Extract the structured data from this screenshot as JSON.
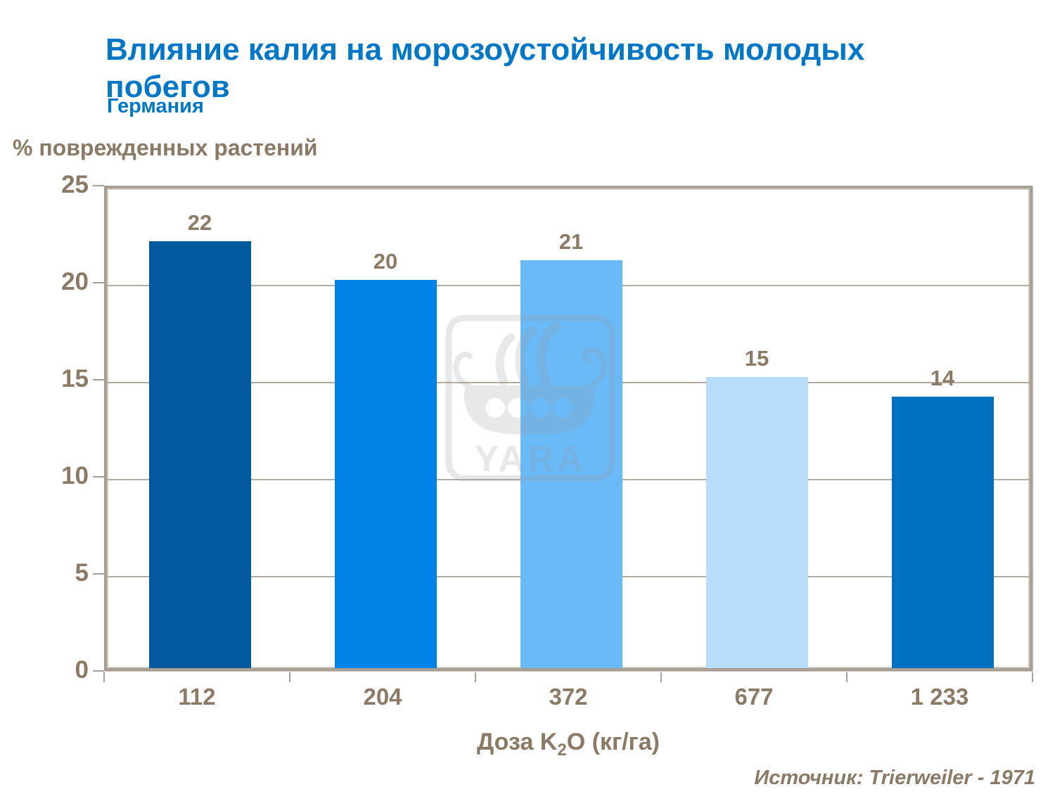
{
  "header": {
    "title": "Влияние калия на морозоустойчивость молодых побегов",
    "title_lines": [
      "Влияние калия на морозоустойчивость молодых",
      "побегов"
    ],
    "subtitle": "Германия"
  },
  "chart_data": {
    "type": "bar",
    "title": "Влияние калия на морозоустойчивость молодых побегов",
    "subtitle": "Германия",
    "ylabel": "% поврежденных растений",
    "xlabel": "Доза K2O (кг/га)",
    "xlabel_parts": {
      "prefix": "Доза K",
      "sub": "2",
      "suffix": "O (кг/га)"
    },
    "categories": [
      "112",
      "204",
      "372",
      "677",
      "1 233"
    ],
    "values": [
      22,
      20,
      21,
      15,
      14
    ],
    "bar_colors": [
      "#02599E",
      "#0283E8",
      "#6ABAF8",
      "#B8DDFB",
      "#0070C0"
    ],
    "ylim": [
      0,
      25
    ],
    "yticks": [
      0,
      5,
      10,
      15,
      20,
      25
    ],
    "grid": true,
    "legend": false,
    "source": "Источник: Trierweiler - 1971"
  },
  "watermark": {
    "text": "YARA"
  },
  "colors": {
    "title_blue": "#0077C8",
    "text_brown": "#8A7A66",
    "axis_taupe": "#A99E93",
    "grid_taupe": "#B5ABA1",
    "watermark_gray": "#9A9A9A"
  }
}
